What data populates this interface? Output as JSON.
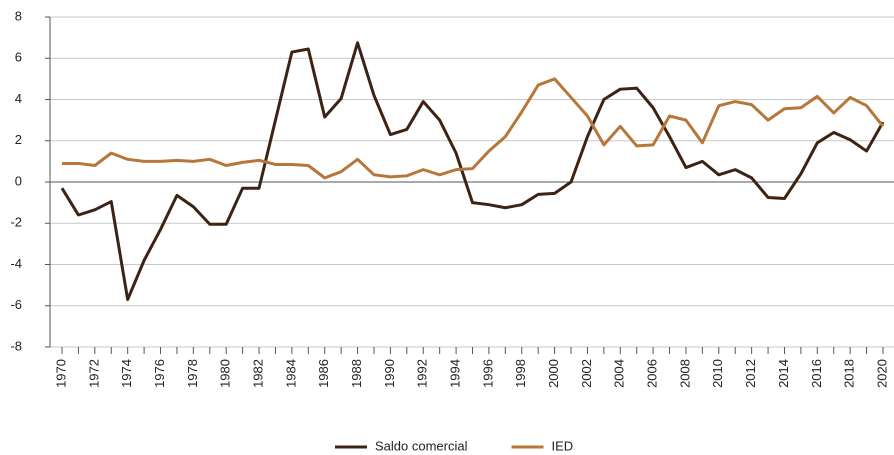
{
  "chart_data": {
    "type": "line",
    "categories": [
      "1970",
      null,
      "1972",
      null,
      "1974",
      null,
      "1976",
      null,
      "1978",
      null,
      "1980",
      null,
      "1982",
      null,
      "1984",
      null,
      "1986",
      null,
      "1988",
      null,
      "1990",
      null,
      "1992",
      null,
      "1994",
      null,
      "1996",
      null,
      "1998",
      null,
      "2000",
      null,
      "2002",
      null,
      "2004",
      null,
      "2006",
      null,
      "2008",
      null,
      "2010",
      null,
      "2012",
      null,
      "2014",
      null,
      "2016",
      null,
      "2018",
      null,
      "2020"
    ],
    "series": [
      {
        "name": "Saldo comercial",
        "color": "#3d2314",
        "values": [
          -0.3,
          -1.6,
          -1.35,
          -0.95,
          -5.7,
          -3.8,
          -2.3,
          -0.65,
          -1.2,
          -2.05,
          -2.05,
          -0.3,
          -0.3,
          3.0,
          6.3,
          6.45,
          3.15,
          4.05,
          6.75,
          4.2,
          2.3,
          2.55,
          3.9,
          3.0,
          1.4,
          -1.0,
          -1.1,
          -1.25,
          -1.1,
          -0.6,
          -0.55,
          0.0,
          2.2,
          4.0,
          4.5,
          4.55,
          3.6,
          2.2,
          0.7,
          1.0,
          0.35,
          0.6,
          0.2,
          -0.75,
          -0.8,
          0.4,
          1.9,
          2.4,
          2.05,
          1.5,
          2.9
        ]
      },
      {
        "name": "IED",
        "color": "#b5773a",
        "values": [
          0.9,
          0.9,
          0.8,
          1.4,
          1.1,
          1.0,
          1.0,
          1.05,
          1.0,
          1.1,
          0.8,
          0.95,
          1.05,
          0.85,
          0.85,
          0.8,
          0.2,
          0.5,
          1.1,
          0.35,
          0.25,
          0.3,
          0.6,
          0.35,
          0.6,
          0.65,
          1.5,
          2.2,
          3.4,
          4.7,
          5.0,
          4.1,
          3.2,
          1.8,
          2.7,
          1.75,
          1.8,
          3.2,
          3.0,
          1.9,
          3.7,
          3.9,
          3.75,
          3.0,
          3.55,
          3.6,
          4.15,
          3.35,
          4.1,
          3.7,
          2.7
        ]
      }
    ],
    "ylim": [
      -8,
      8
    ],
    "yticks": [
      -8,
      -6,
      -4,
      -2,
      0,
      2,
      4,
      6,
      8
    ],
    "grid": true
  }
}
